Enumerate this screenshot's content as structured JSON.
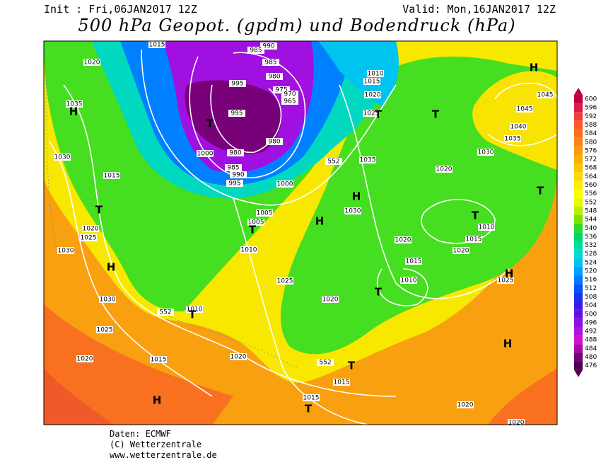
{
  "header": {
    "init": "Init : Fri,06JAN2017 12Z",
    "valid": "Valid: Mon,16JAN2017 12Z",
    "title": "500 hPa Geopot. (gpdm) und Bodendruck (hPa)"
  },
  "colorbar": {
    "ticks": [
      600,
      596,
      592,
      588,
      584,
      580,
      576,
      572,
      568,
      564,
      560,
      556,
      552,
      548,
      544,
      540,
      536,
      532,
      528,
      524,
      520,
      516,
      512,
      508,
      504,
      500,
      496,
      492,
      488,
      484,
      480,
      476
    ],
    "colors": [
      "#c0003c",
      "#dc1e46",
      "#f03c3c",
      "#f85a28",
      "#f87020",
      "#f88418",
      "#f89a10",
      "#f8b000",
      "#fcc400",
      "#fcd800",
      "#fcec00",
      "#fcfc00",
      "#e6fa00",
      "#b8f000",
      "#78e400",
      "#30dc20",
      "#00d864",
      "#00dca0",
      "#00d8d0",
      "#00c4f0",
      "#00a0ff",
      "#0078ff",
      "#0050ff",
      "#1830f0",
      "#3c18e8",
      "#6410e0",
      "#8c10e0",
      "#b410e0",
      "#d010d8",
      "#a808a8",
      "#780078",
      "#500050"
    ]
  },
  "isobar_labels": [
    1015,
    990,
    985,
    985,
    980,
    975,
    970,
    965,
    995,
    995,
    980,
    1000,
    980,
    985,
    990,
    995,
    1000,
    1020,
    1035,
    1030,
    1015,
    1020,
    1025,
    1030,
    1030,
    1025,
    1020,
    1015,
    1005,
    1005,
    1010,
    1010,
    552,
    552,
    1010,
    1015,
    1020,
    1025,
    1035,
    1030,
    1020,
    1045,
    1045,
    1040,
    1035,
    1030,
    1020,
    1010,
    1015,
    1020,
    1015,
    1010,
    1025,
    1020,
    1025,
    1020,
    552,
    1015,
    1015,
    1020,
    1020
  ],
  "pressure_centers": [
    "H",
    "T",
    "T",
    "H",
    "T",
    "H",
    "H",
    "T",
    "T",
    "H",
    "T",
    "T",
    "H",
    "T",
    "T",
    "H",
    "T",
    "H",
    "T"
  ],
  "footer": {
    "source": "Daten: ECMWF",
    "copyright": "(C) Wetterzentrale",
    "url": "www.wetterzentrale.de"
  }
}
